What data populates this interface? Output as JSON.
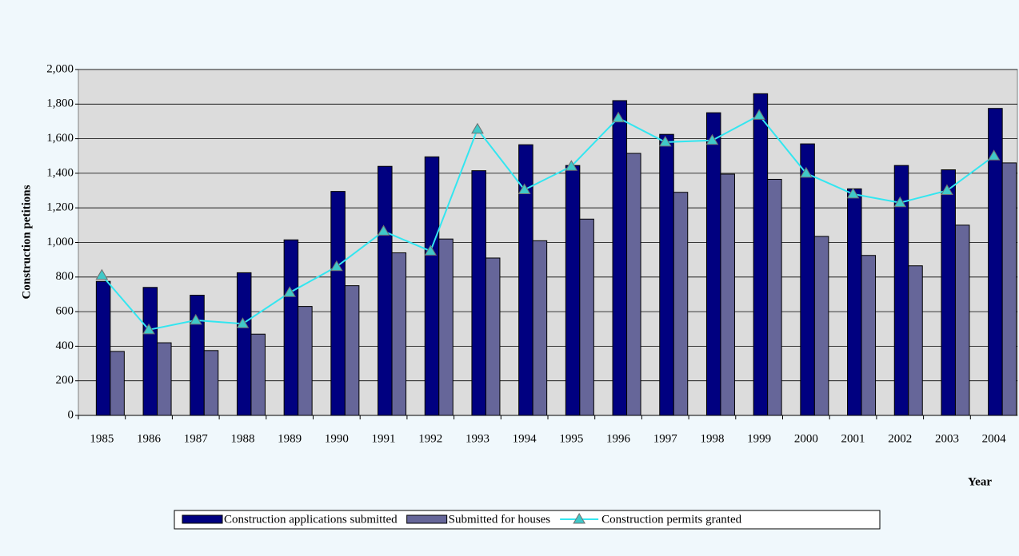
{
  "chart_data": {
    "type": "bar",
    "categories": [
      "1985",
      "1986",
      "1987",
      "1988",
      "1989",
      "1990",
      "1991",
      "1992",
      "1993",
      "1994",
      "1995",
      "1996",
      "1997",
      "1998",
      "1999",
      "2000",
      "2001",
      "2002",
      "2003",
      "2004"
    ],
    "x_label": "Year",
    "y_label": "Construction petitions",
    "series": [
      {
        "name": "Construction applications submitted",
        "type": "bar",
        "color": "#000080",
        "values": [
          775,
          740,
          695,
          825,
          1015,
          1295,
          1440,
          1495,
          1415,
          1565,
          1445,
          1820,
          1625,
          1750,
          1860,
          1570,
          1310,
          1445,
          1420,
          1775
        ]
      },
      {
        "name": "Submitted for houses",
        "type": "bar",
        "color": "#666699",
        "values": [
          370,
          420,
          375,
          470,
          630,
          750,
          940,
          1020,
          910,
          1010,
          1135,
          1515,
          1290,
          1395,
          1365,
          1035,
          925,
          865,
          1100,
          1460
        ]
      },
      {
        "name": "Construction  permits granted",
        "type": "line",
        "color": "#33e6f0",
        "values": [
          810,
          495,
          550,
          530,
          710,
          860,
          1065,
          950,
          1655,
          1305,
          1440,
          1720,
          1580,
          1590,
          1735,
          1400,
          1280,
          1230,
          1300,
          1500
        ]
      }
    ],
    "ylim": [
      0,
      2000
    ],
    "yticks": [
      0,
      200,
      400,
      600,
      800,
      {
        "value": 1000,
        "label": "1,000"
      },
      {
        "value": 1200,
        "label": "1,200"
      },
      {
        "value": 1400,
        "label": "1,400"
      },
      {
        "value": 1600,
        "label": "1,600"
      },
      {
        "value": 1800,
        "label": "1,800"
      },
      {
        "value": 2000,
        "label": "2,000"
      }
    ],
    "grid": true
  }
}
